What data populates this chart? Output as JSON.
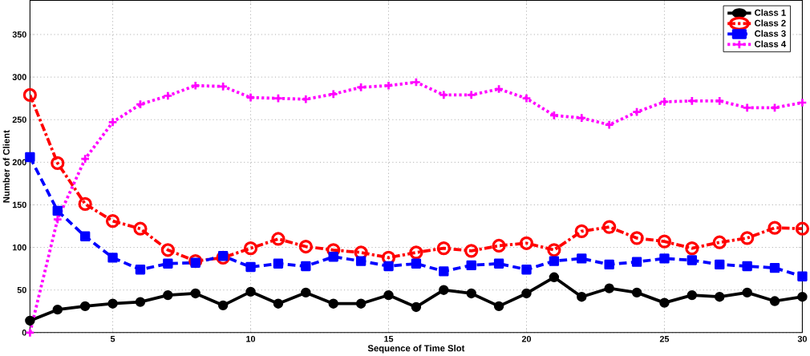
{
  "chart_data": {
    "type": "line",
    "xlabel": "Sequence of Time Slot",
    "ylabel": "Number of Client",
    "x": [
      2,
      3,
      4,
      5,
      6,
      7,
      8,
      9,
      10,
      11,
      12,
      13,
      14,
      15,
      16,
      17,
      18,
      19,
      20,
      21,
      22,
      23,
      24,
      25,
      26,
      27,
      28,
      29,
      30
    ],
    "series": [
      {
        "name": "Class 1",
        "color": "#000000",
        "marker": "circle",
        "line_style": "solid",
        "values": [
          14,
          27,
          31,
          34,
          36,
          44,
          46,
          32,
          48,
          34,
          47,
          34,
          34,
          44,
          30,
          50,
          46,
          31,
          46,
          65,
          42,
          52,
          47,
          35,
          44,
          42,
          47,
          37,
          42
        ]
      },
      {
        "name": "Class 2",
        "color": "#ff0000",
        "marker": "circle",
        "line_style": "dashdot",
        "values": [
          279,
          199,
          151,
          131,
          122,
          97,
          84,
          88,
          99,
          110,
          101,
          97,
          94,
          88,
          94,
          99,
          96,
          102,
          105,
          97,
          119,
          124,
          111,
          107,
          99,
          106,
          111,
          123,
          122
        ]
      },
      {
        "name": "Class 3",
        "color": "#0000ff",
        "marker": "square",
        "line_style": "dashed",
        "values": [
          206,
          143,
          113,
          88,
          74,
          81,
          82,
          90,
          77,
          81,
          78,
          89,
          84,
          78,
          81,
          72,
          79,
          81,
          74,
          84,
          87,
          80,
          83,
          87,
          85,
          80,
          78,
          76,
          66
        ]
      },
      {
        "name": "Class 4",
        "color": "#ff00ff",
        "marker": "cross",
        "line_style": "dotted",
        "values": [
          0,
          133,
          204,
          247,
          268,
          278,
          290,
          289,
          276,
          275,
          274,
          280,
          288,
          290,
          294,
          279,
          279,
          286,
          275,
          255,
          252,
          244,
          259,
          271,
          272,
          272,
          264,
          264,
          270
        ]
      }
    ],
    "xlim": [
      2,
      30
    ],
    "ylim": [
      0,
      390
    ],
    "xticks": [
      5,
      10,
      15,
      20,
      25,
      30
    ],
    "yticks": [
      0,
      50,
      100,
      150,
      200,
      250,
      300,
      350
    ],
    "grid": true,
    "legend": "top right"
  }
}
